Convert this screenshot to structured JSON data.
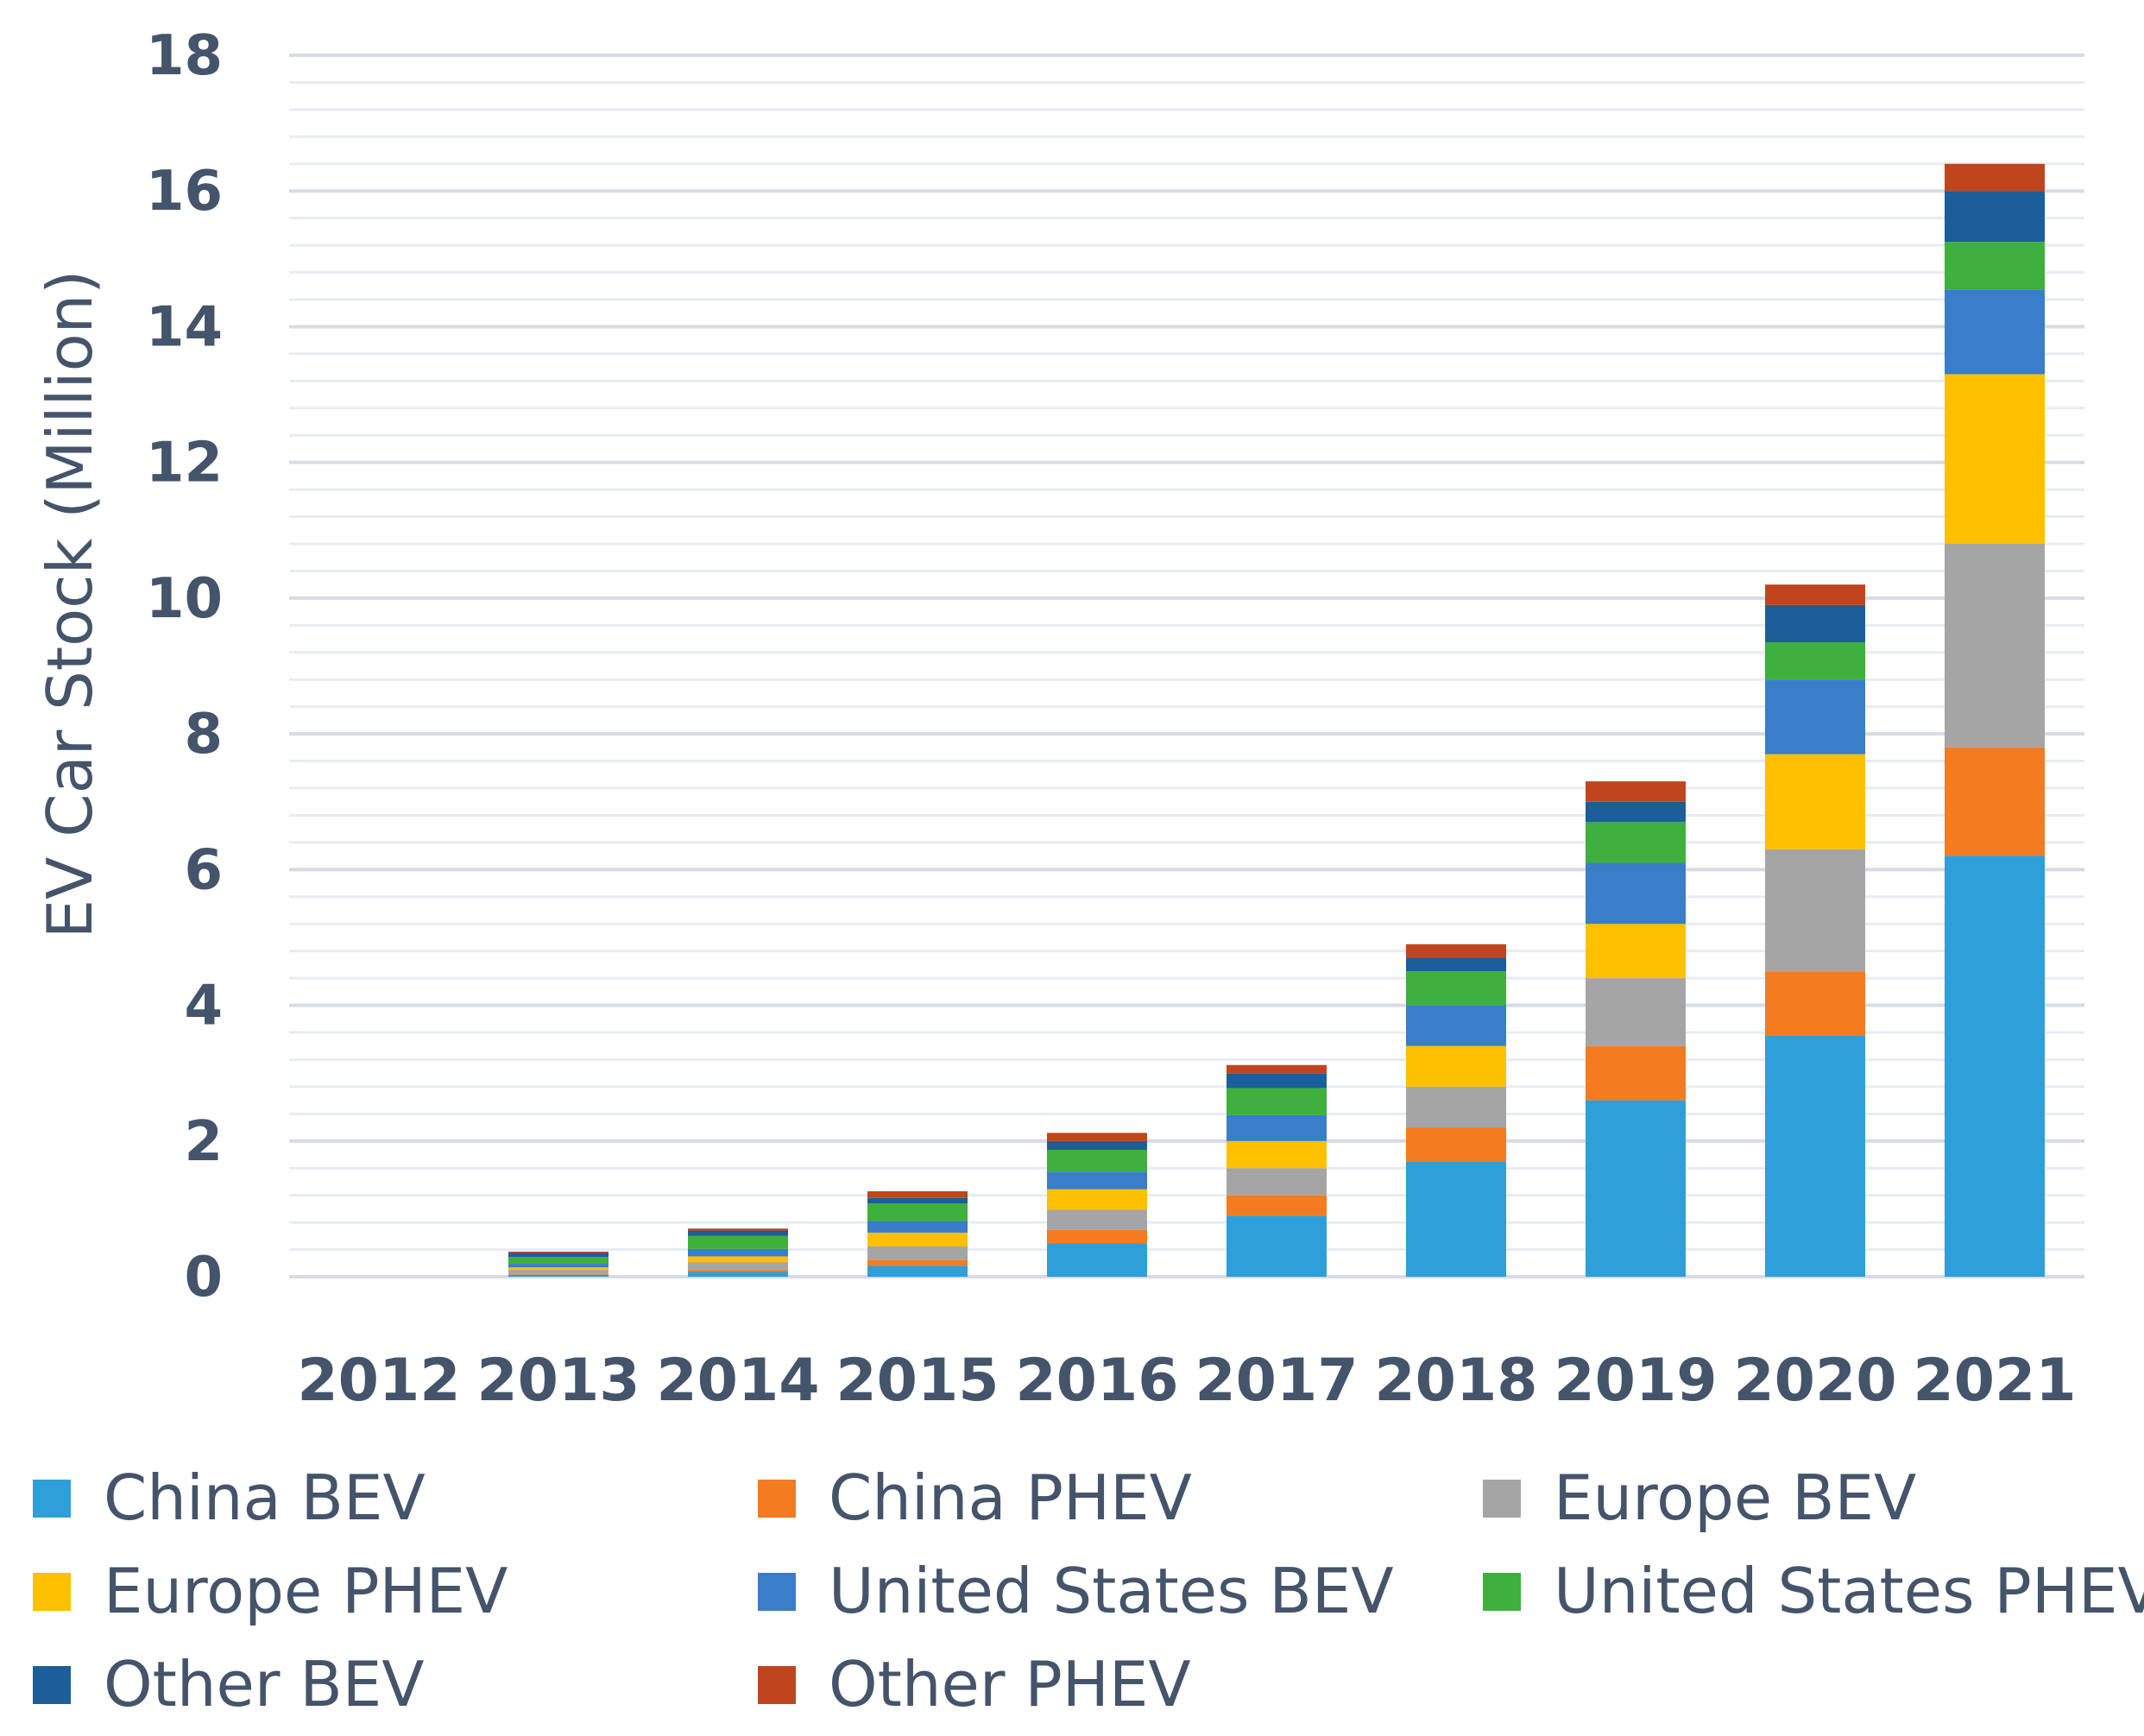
{
  "chart_data": {
    "type": "bar",
    "stacked": true,
    "title": "",
    "xlabel": "",
    "ylabel": "EV Car Stock (Million)",
    "ylim": [
      0,
      18
    ],
    "yticks": [
      0,
      2,
      4,
      6,
      8,
      10,
      12,
      14,
      16,
      18
    ],
    "grid": true,
    "legend_position": "bottom",
    "categories": [
      "2012",
      "2013",
      "2014",
      "2015",
      "2016",
      "2017",
      "2018",
      "2019",
      "2020",
      "2021"
    ],
    "series": [
      {
        "name": "China BEV",
        "color": "#2e9fd8",
        "values": [
          0.0,
          0.03,
          0.07,
          0.16,
          0.49,
          0.9,
          1.7,
          2.6,
          3.55,
          6.2
        ]
      },
      {
        "name": "China PHEV",
        "color": "#f47b20",
        "values": [
          0.0,
          0.01,
          0.03,
          0.09,
          0.2,
          0.3,
          0.5,
          0.8,
          0.95,
          1.6
        ]
      },
      {
        "name": "Europe BEV",
        "color": "#a5a5a5",
        "values": [
          0.0,
          0.06,
          0.11,
          0.2,
          0.3,
          0.4,
          0.6,
          1.0,
          1.8,
          3.0
        ]
      },
      {
        "name": "Europe PHEV",
        "color": "#ffc000",
        "values": [
          0.0,
          0.04,
          0.09,
          0.2,
          0.3,
          0.4,
          0.6,
          0.8,
          1.4,
          2.5
        ]
      },
      {
        "name": "United States BEV",
        "color": "#3a7dc9",
        "values": [
          0.0,
          0.05,
          0.11,
          0.17,
          0.26,
          0.38,
          0.6,
          0.9,
          1.1,
          1.25
        ]
      },
      {
        "name": "United States PHEV",
        "color": "#3db03d",
        "values": [
          0.0,
          0.1,
          0.19,
          0.26,
          0.32,
          0.4,
          0.5,
          0.6,
          0.55,
          0.7
        ]
      },
      {
        "name": "Other BEV",
        "color": "#1b5e9a",
        "values": [
          0.0,
          0.06,
          0.08,
          0.08,
          0.13,
          0.21,
          0.2,
          0.3,
          0.55,
          0.75
        ]
      },
      {
        "name": "Other PHEV",
        "color": "#c0451e",
        "values": [
          0.0,
          0.02,
          0.03,
          0.1,
          0.12,
          0.13,
          0.2,
          0.3,
          0.3,
          0.4
        ]
      }
    ]
  }
}
